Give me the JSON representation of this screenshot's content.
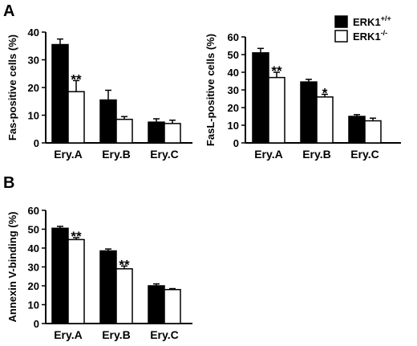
{
  "panel_labels": {
    "a": "A",
    "b": "B"
  },
  "legend": {
    "wt_prefix": "ERK1",
    "wt_sup": "+/+",
    "ko_prefix": "ERK1",
    "ko_sup": "-/-"
  },
  "colors": {
    "wt": "#000000",
    "ko": "#ffffff"
  },
  "chart_data": [
    {
      "id": "fas",
      "type": "bar",
      "ylabel": "Fas-positive cells (%)",
      "ylim": [
        0,
        40
      ],
      "yticks": [
        0,
        10,
        20,
        30,
        40
      ],
      "categories": [
        "Ery.A",
        "Ery.B",
        "Ery.C"
      ],
      "series": [
        {
          "name": "ERK1+/+",
          "values": [
            35.5,
            15.5,
            7.5
          ],
          "errors": [
            2,
            3.5,
            1.2
          ]
        },
        {
          "name": "ERK1-/-",
          "values": [
            18.5,
            8.5,
            7
          ],
          "errors": [
            4,
            1,
            1.2
          ]
        }
      ],
      "significance": [
        {
          "category": 0,
          "series": 1,
          "text": "**"
        }
      ]
    },
    {
      "id": "fasl",
      "type": "bar",
      "ylabel": "FasL-positive cells (%)",
      "ylim": [
        0,
        60
      ],
      "yticks": [
        0,
        10,
        20,
        30,
        40,
        50,
        60
      ],
      "categories": [
        "Ery.A",
        "Ery.B",
        "Ery.C"
      ],
      "series": [
        {
          "name": "ERK1+/+",
          "values": [
            51,
            34.5,
            15
          ],
          "errors": [
            2.5,
            1.5,
            1
          ]
        },
        {
          "name": "ERK1-/-",
          "values": [
            37,
            26,
            12.5
          ],
          "errors": [
            3,
            1.5,
            1.5
          ]
        }
      ],
      "significance": [
        {
          "category": 0,
          "series": 1,
          "text": "**"
        },
        {
          "category": 1,
          "series": 1,
          "text": "*"
        }
      ]
    },
    {
      "id": "annexin",
      "type": "bar",
      "ylabel": "Annexin V-binding (%)",
      "ylim": [
        0,
        60
      ],
      "yticks": [
        0,
        10,
        20,
        30,
        40,
        50,
        60
      ],
      "categories": [
        "Ery.A",
        "Ery.B",
        "Ery.C"
      ],
      "series": [
        {
          "name": "ERK1+/+",
          "values": [
            50.5,
            38.5,
            20
          ],
          "errors": [
            1,
            1,
            1
          ]
        },
        {
          "name": "ERK1-/-",
          "values": [
            44.5,
            29,
            18
          ],
          "errors": [
            1,
            1.5,
            0.5
          ]
        }
      ],
      "significance": [
        {
          "category": 0,
          "series": 1,
          "text": "**"
        },
        {
          "category": 1,
          "series": 1,
          "text": "**"
        }
      ]
    }
  ]
}
